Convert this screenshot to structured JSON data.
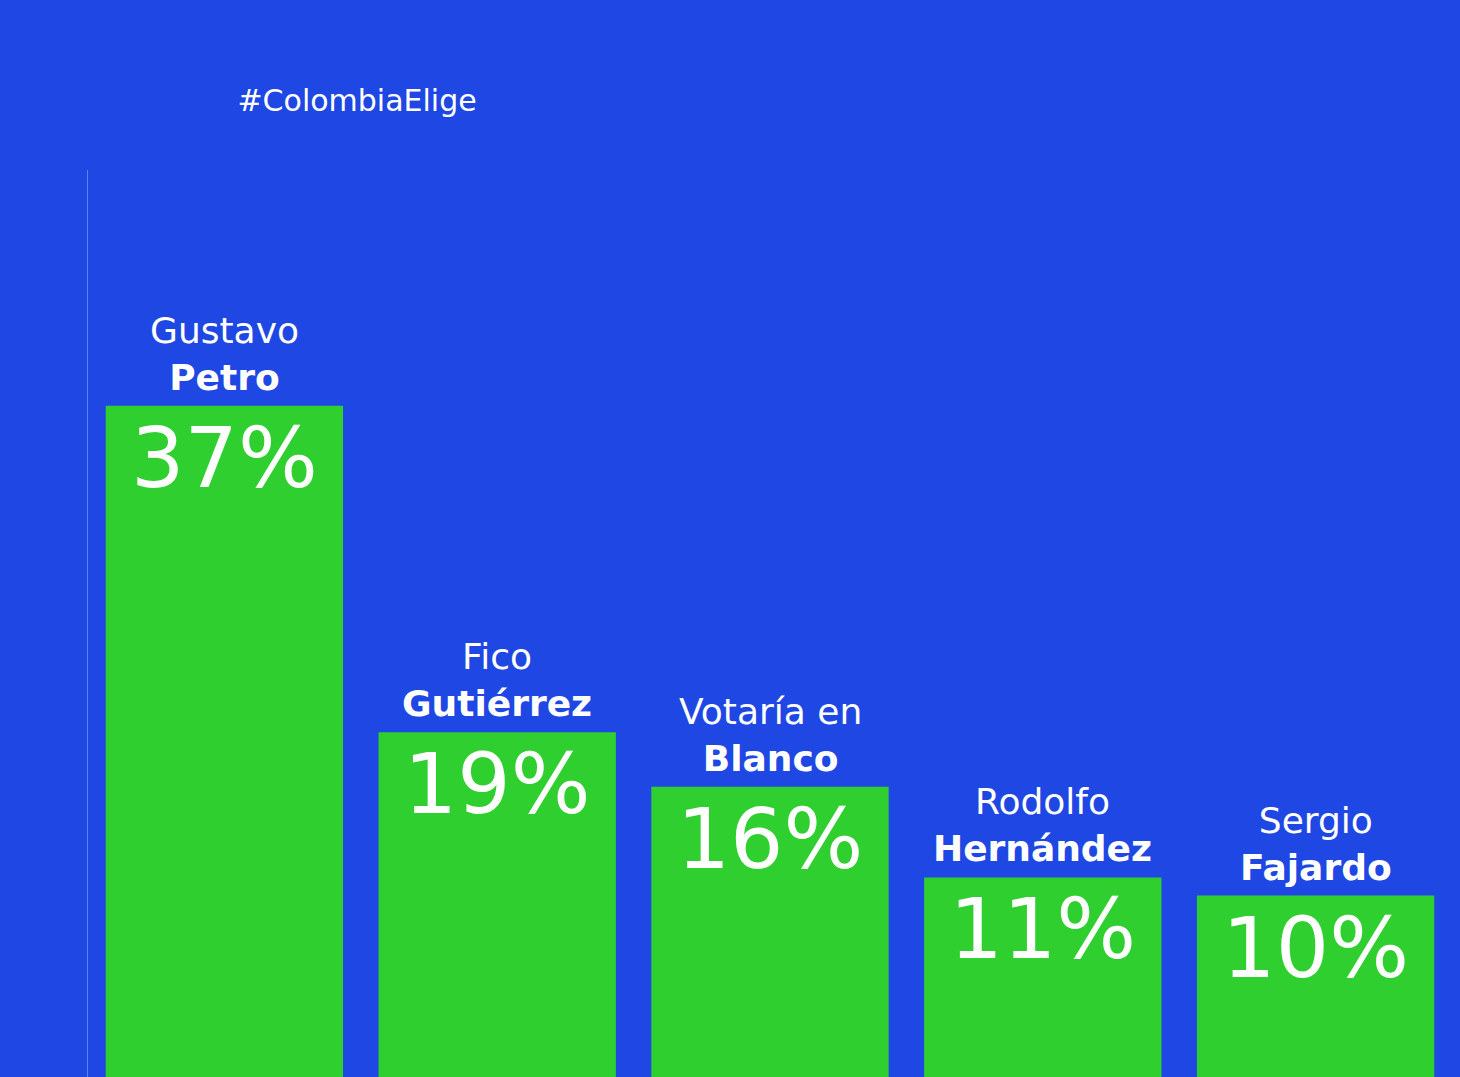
{
  "chart_data": {
    "type": "bar",
    "title": "#ColombiaElige",
    "categories": [
      "Gustavo Petro",
      "Fico Gutiérrez",
      "Votaría en Blanco",
      "Rodolfo Hernández",
      "Sergio Fajardo"
    ],
    "values": [
      37,
      19,
      16,
      11,
      10
    ],
    "value_labels": [
      "37%",
      "19%",
      "16%",
      "11%",
      "10%"
    ],
    "color": "#2fcf2f",
    "ylim": [
      0,
      50
    ],
    "grid": false,
    "data_labels": true,
    "tick_labels": false
  }
}
